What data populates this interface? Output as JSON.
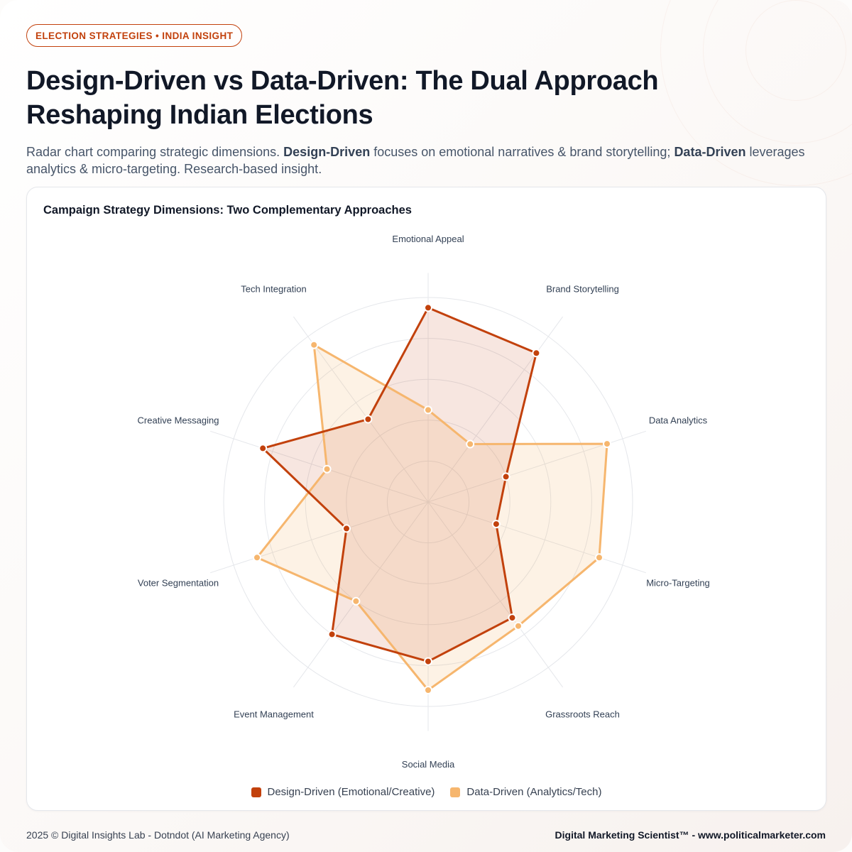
{
  "badge": "ELECTION STRATEGIES • INDIA INSIGHT",
  "title": "Design-Driven vs Data-Driven: The Dual Approach Reshaping Indian Elections",
  "subtitle": {
    "part1": "Radar chart comparing strategic dimensions. ",
    "bold1": "Design-Driven",
    "part2": " focuses on emotional narratives & brand storytelling; ",
    "bold2": "Data-Driven",
    "part3": " leverages analytics & micro-targeting. Research-based insight."
  },
  "colors": {
    "design": "#c2410c",
    "data": "#f6b66e",
    "grid": "#e5e7eb"
  },
  "chart_data": {
    "type": "radar",
    "title": "Campaign Strategy Dimensions: Two Complementary Approaches",
    "axes": [
      "Emotional Appeal",
      "Brand Storytelling",
      "Data Analytics",
      "Micro-Targeting",
      "Grassroots Reach",
      "Social Media",
      "Event Management",
      "Voter Segmentation",
      "Creative Messaging",
      "Tech Integration"
    ],
    "range": [
      0,
      100
    ],
    "grid_levels": 5,
    "series": [
      {
        "name": "Design-Driven (Emotional/Creative)",
        "values": [
          95,
          90,
          40,
          35,
          70,
          78,
          80,
          42,
          85,
          50
        ]
      },
      {
        "name": "Data-Driven (Analytics/Tech)",
        "values": [
          45,
          35,
          92,
          88,
          75,
          92,
          60,
          88,
          52,
          95
        ]
      }
    ],
    "legend_position": "bottom"
  },
  "footer": {
    "left": "2025 © Digital Insights Lab - Dotndot (AI Marketing Agency)",
    "right": "Digital Marketing Scientist™ - www.politicalmarketer.com"
  }
}
